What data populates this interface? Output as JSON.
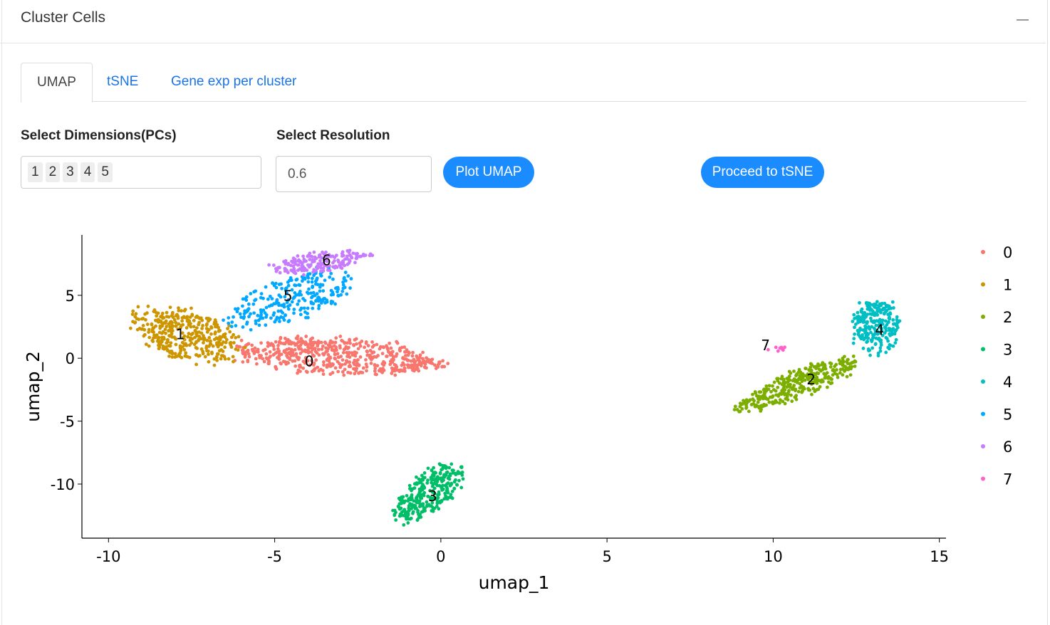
{
  "header": {
    "title": "Cluster Cells",
    "collapse_icon": "minus-icon"
  },
  "tabs": [
    {
      "label": "UMAP",
      "active": true
    },
    {
      "label": "tSNE"
    },
    {
      "label": "Gene exp per cluster"
    }
  ],
  "controls": {
    "dims_label": "Select Dimensions(PCs)",
    "dims_selected": [
      "1",
      "2",
      "3",
      "4",
      "5"
    ],
    "resolution_label": "Select Resolution",
    "resolution_value": "0.6",
    "plot_button": "Plot UMAP",
    "proceed_button": "Proceed to tSNE"
  },
  "chart_data": {
    "type": "scatter",
    "xlabel": "umap_1",
    "ylabel": "umap_2",
    "xlim": [
      -10.8,
      15.2
    ],
    "ylim": [
      -14.3,
      9.8
    ],
    "xticks": [
      "-10",
      "-5",
      "0",
      "5",
      "10",
      "15"
    ],
    "yticks": [
      "5",
      "0",
      "-5",
      "-10"
    ],
    "grid": false,
    "legend": "right",
    "clusters": [
      {
        "id": "0",
        "color": "#F8766D",
        "label_x": -3.96,
        "label_y": -0.23
      },
      {
        "id": "1",
        "color": "#CD9600",
        "label_x": -7.84,
        "label_y": 1.92
      },
      {
        "id": "2",
        "color": "#7CAE00",
        "label_x": 11.14,
        "label_y": -1.69
      },
      {
        "id": "3",
        "color": "#00BE67",
        "label_x": -0.25,
        "label_y": -10.96
      },
      {
        "id": "4",
        "color": "#00BFC4",
        "label_x": 13.2,
        "label_y": 2.26
      },
      {
        "id": "5",
        "color": "#00A9FF",
        "label_x": -4.6,
        "label_y": 4.97
      },
      {
        "id": "6",
        "color": "#C77CFF",
        "label_x": -3.44,
        "label_y": 7.8
      },
      {
        "id": "7",
        "color": "#FF61CC",
        "label_x": 9.77,
        "label_y": 1.02
      }
    ]
  }
}
